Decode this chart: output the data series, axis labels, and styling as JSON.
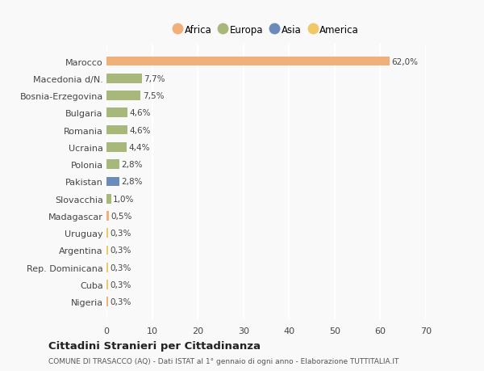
{
  "categories": [
    "Nigeria",
    "Cuba",
    "Rep. Dominicana",
    "Argentina",
    "Uruguay",
    "Madagascar",
    "Slovacchia",
    "Pakistan",
    "Polonia",
    "Ucraina",
    "Romania",
    "Bulgaria",
    "Bosnia-Erzegovina",
    "Macedonia d/N.",
    "Marocco"
  ],
  "values": [
    0.3,
    0.3,
    0.3,
    0.3,
    0.3,
    0.5,
    1.0,
    2.8,
    2.8,
    4.4,
    4.6,
    4.6,
    7.5,
    7.7,
    62.0
  ],
  "colors": [
    "#f0b07a",
    "#f0c868",
    "#f0c868",
    "#f0c868",
    "#f0c868",
    "#f0b07a",
    "#a8b87a",
    "#6b8cba",
    "#a8b87a",
    "#a8b87a",
    "#a8b87a",
    "#a8b87a",
    "#a8b87a",
    "#a8b87a",
    "#f0b07a"
  ],
  "labels": [
    "0,3%",
    "0,3%",
    "0,3%",
    "0,3%",
    "0,3%",
    "0,5%",
    "1,0%",
    "2,8%",
    "2,8%",
    "4,4%",
    "4,6%",
    "4,6%",
    "7,5%",
    "7,7%",
    "62,0%"
  ],
  "legend": [
    {
      "label": "Africa",
      "color": "#f0b07a"
    },
    {
      "label": "Europa",
      "color": "#a8b87a"
    },
    {
      "label": "Asia",
      "color": "#6b8cba"
    },
    {
      "label": "America",
      "color": "#f0c868"
    }
  ],
  "title": "Cittadini Stranieri per Cittadinanza",
  "subtitle": "COMUNE DI TRASACCO (AQ) - Dati ISTAT al 1° gennaio di ogni anno - Elaborazione TUTTITALIA.IT",
  "xlim": [
    0,
    70
  ],
  "xticks": [
    0,
    10,
    20,
    30,
    40,
    50,
    60,
    70
  ],
  "background_color": "#f9f9f9"
}
